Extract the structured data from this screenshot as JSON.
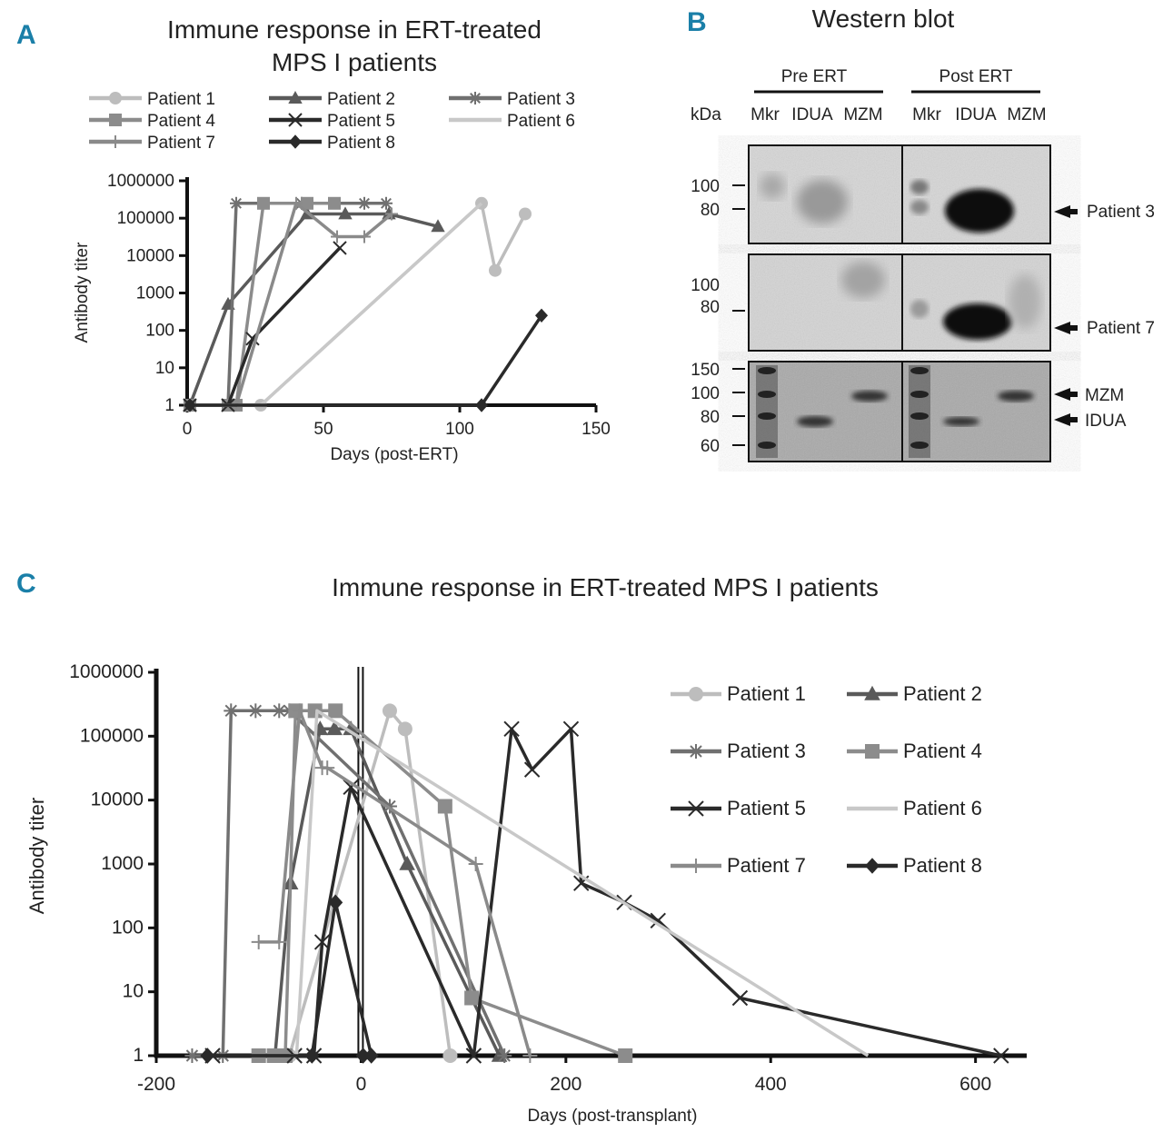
{
  "panels": {
    "a_label": "A",
    "b_label": "B",
    "c_label": "C"
  },
  "series_colors": {
    "Patient 1": "#bdbdbd",
    "Patient 2": "#5a5a5a",
    "Patient 3": "#707070",
    "Patient 4": "#8c8c8c",
    "Patient 5": "#2a2a2a",
    "Patient 6": "#c8c8c8",
    "Patient 7": "#8a8a8a",
    "Patient 8": "#2a2a2a"
  },
  "series_markers": {
    "Patient 1": "circle",
    "Patient 2": "triangle",
    "Patient 3": "star",
    "Patient 4": "square",
    "Patient 5": "x",
    "Patient 6": "none",
    "Patient 7": "plus",
    "Patient 8": "diamond"
  },
  "chart_data": [
    {
      "type": "line",
      "id": "A",
      "title": [
        "Immune response in ERT-treated",
        "MPS I patients"
      ],
      "xlabel": "Days (post-ERT)",
      "ylabel": "Antibody titer",
      "xlim": [
        0,
        150
      ],
      "ylim": [
        1,
        1000000
      ],
      "yscale": "log",
      "xticks": [
        "0",
        "50",
        "100",
        "150"
      ],
      "yticks": [
        "1",
        "10",
        "100",
        "1000",
        "10000",
        "100000",
        "1000000"
      ],
      "legend": [
        "Patient 1",
        "Patient 2",
        "Patient 3",
        "Patient 4",
        "Patient 5",
        "Patient 6",
        "Patient 7",
        "Patient 8"
      ],
      "series": [
        {
          "name": "Patient 1",
          "x": [
            1,
            15,
            27,
            108,
            113,
            124
          ],
          "y": [
            1,
            1,
            1,
            250000,
            4000,
            130000
          ]
        },
        {
          "name": "Patient 2",
          "x": [
            1,
            15,
            44,
            58,
            74,
            92
          ],
          "y": [
            1,
            500,
            130000,
            130000,
            130000,
            60000
          ]
        },
        {
          "name": "Patient 3",
          "x": [
            1,
            15,
            18,
            42,
            65,
            73
          ],
          "y": [
            1,
            1,
            250000,
            250000,
            250000,
            250000
          ]
        },
        {
          "name": "Patient 4",
          "x": [
            1,
            15,
            18,
            28,
            44,
            54
          ],
          "y": [
            1,
            1,
            1,
            250000,
            250000,
            250000
          ]
        },
        {
          "name": "Patient 5",
          "x": [
            1,
            15,
            24,
            56
          ],
          "y": [
            1,
            1,
            60,
            16000
          ]
        },
        {
          "name": "Patient 6",
          "x": [
            1,
            20,
            27,
            108
          ],
          "y": [
            1,
            1,
            1,
            250000
          ]
        },
        {
          "name": "Patient 7",
          "x": [
            1,
            18,
            40,
            55,
            65,
            75
          ],
          "y": [
            1,
            1,
            250000,
            32000,
            32000,
            130000
          ]
        },
        {
          "name": "Patient 8",
          "x": [
            1,
            108,
            130
          ],
          "y": [
            1,
            1,
            250
          ]
        }
      ]
    },
    {
      "type": "line",
      "id": "C",
      "title": "Immune response in ERT-treated MPS I patients",
      "xlabel": "Days (post-transplant)",
      "ylabel": "Antibody titer",
      "xlim": [
        -200,
        650
      ],
      "ylim": [
        1,
        1000000
      ],
      "yscale": "log",
      "xticks": [
        "-200",
        "0",
        "200",
        "400",
        "600"
      ],
      "yticks": [
        "1",
        "10",
        "100",
        "1000",
        "10000",
        "100000",
        "1000000"
      ],
      "legend": [
        "Patient 1",
        "Patient 2",
        "Patient 3",
        "Patient 4",
        "Patient 5",
        "Patient 6",
        "Patient 7",
        "Patient 8"
      ],
      "series": [
        {
          "name": "Patient 1",
          "x": [
            -85,
            -70,
            28,
            43,
            87
          ],
          "y": [
            1,
            1,
            250000,
            130000,
            1
          ]
        },
        {
          "name": "Patient 2",
          "x": [
            -84,
            -69,
            -40,
            -26,
            -10,
            45,
            135
          ],
          "y": [
            1,
            500,
            130000,
            130000,
            130000,
            1000,
            1
          ]
        },
        {
          "name": "Patient 3",
          "x": [
            -165,
            -135,
            -127,
            -103,
            -80,
            -70,
            28,
            140
          ],
          "y": [
            1,
            1,
            250000,
            250000,
            250000,
            250000,
            8000,
            1
          ]
        },
        {
          "name": "Patient 4",
          "x": [
            -100,
            -85,
            -74,
            -64,
            -45,
            -25,
            82,
            108,
            258
          ],
          "y": [
            1,
            1,
            1,
            250000,
            250000,
            250000,
            8000,
            8,
            1
          ]
        },
        {
          "name": "Patient 5",
          "x": [
            -145,
            -65,
            -46,
            -38,
            -10,
            110,
            147,
            167,
            205,
            215,
            257,
            290,
            370,
            625
          ],
          "y": [
            1,
            1,
            1,
            60,
            16000,
            1,
            130000,
            30000,
            130000,
            500,
            250,
            130,
            8,
            1
          ]
        },
        {
          "name": "Patient 6",
          "x": [
            -70,
            -63,
            -43,
            495
          ],
          "y": [
            1,
            1,
            250000,
            1
          ]
        },
        {
          "name": "Patient 7",
          "x": [
            -100,
            -80,
            -60,
            -38,
            -33,
            112,
            165
          ],
          "y": [
            60,
            60,
            250000,
            32000,
            32000,
            1000,
            1
          ]
        },
        {
          "name": "Patient 8",
          "x": [
            -150,
            -48,
            -25,
            10,
            2
          ],
          "y": [
            1,
            1,
            250,
            1,
            1
          ]
        }
      ]
    }
  ],
  "western_blot": {
    "title": "Western blot",
    "group_pre": "Pre ERT",
    "group_post": "Post ERT",
    "kda_label": "kDa",
    "lanes": [
      "Mkr",
      "IDUA",
      "MZM",
      "Mkr",
      "IDUA",
      "MZM"
    ],
    "blot1_markers": [
      "100",
      "80"
    ],
    "blot2_markers": [
      "100",
      "80"
    ],
    "blot3_markers": [
      "150",
      "100",
      "80",
      "60"
    ],
    "blot1_arrow": "Patient 3",
    "blot2_arrow": "Patient 7",
    "blot3_arrows": [
      "MZM",
      "IDUA"
    ]
  }
}
